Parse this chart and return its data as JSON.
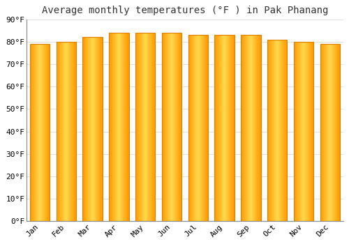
{
  "title": "Average monthly temperatures (°F ) in Pak Phanang",
  "months": [
    "Jan",
    "Feb",
    "Mar",
    "Apr",
    "May",
    "Jun",
    "Jul",
    "Aug",
    "Sep",
    "Oct",
    "Nov",
    "Dec"
  ],
  "values": [
    79,
    80,
    82,
    84,
    84,
    84,
    83,
    83,
    83,
    81,
    80,
    79
  ],
  "bar_color": "#FFA500",
  "bar_highlight": "#FFD700",
  "bar_edge_color": "#E08000",
  "background_color": "#FFFFFF",
  "plot_bg_color": "#FFFFFF",
  "ylim": [
    0,
    90
  ],
  "yticks": [
    0,
    10,
    20,
    30,
    40,
    50,
    60,
    70,
    80,
    90
  ],
  "title_fontsize": 10,
  "tick_fontsize": 8,
  "grid_color": "#E0E0E0"
}
